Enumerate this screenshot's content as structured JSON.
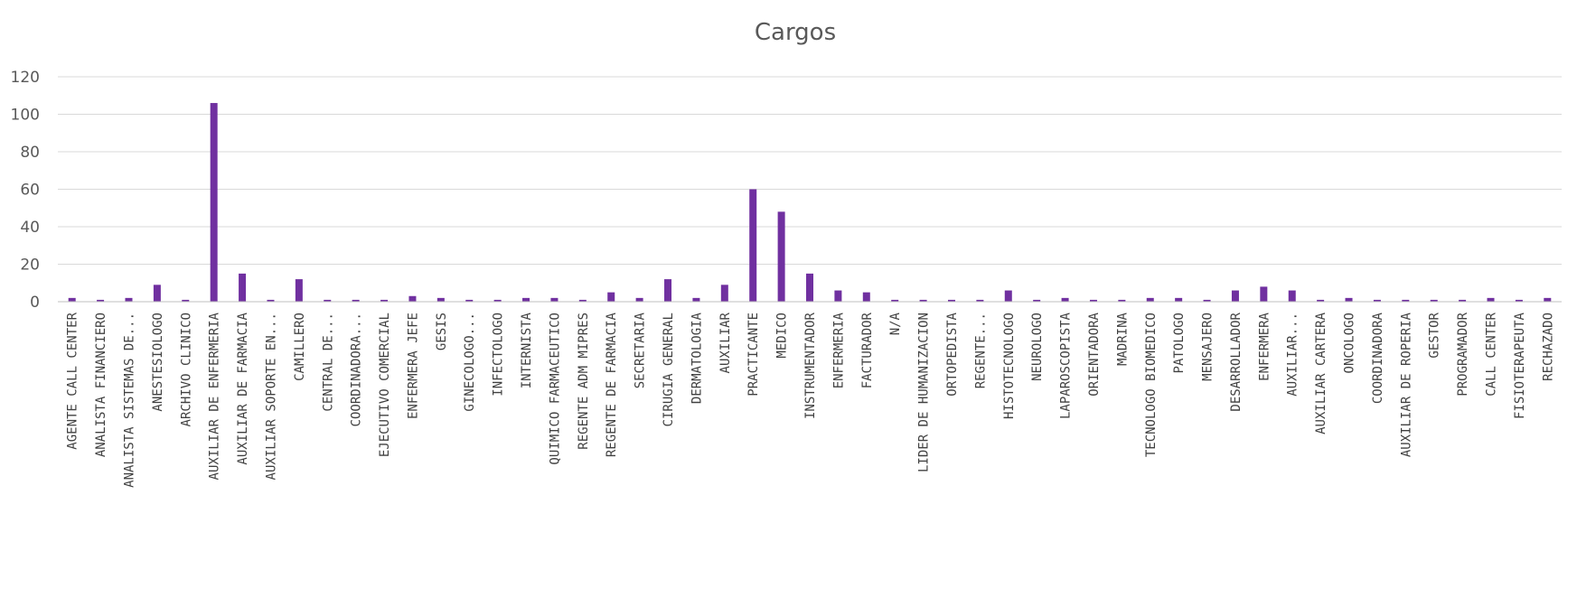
{
  "chart_data": {
    "type": "bar",
    "title": "Cargos",
    "xlabel": "",
    "ylabel": "",
    "ylim": [
      0,
      120
    ],
    "yticks": [
      "0",
      "20",
      "40",
      "60",
      "80",
      "100",
      "120"
    ],
    "grid": true,
    "legend": "none",
    "bar_color": "#7030a0",
    "categories": [
      "AGENTE CALL CENTER",
      "ANALISTA FINANCIERO",
      "ANALISTA SISTEMAS DE...",
      "ANESTESIOLOGO",
      "ARCHIVO CLINICO",
      "AUXILIAR DE ENFERMERIA",
      "AUXILIAR DE FARMACIA",
      "AUXILIAR SOPORTE EN...",
      "CAMILLERO",
      "CENTRAL DE...",
      "COORDINADORA...",
      "EJECUTIVO COMERCIAL",
      "ENFERMERA JEFE",
      "GESIS",
      "GINECOLOGO...",
      "INFECTOLOGO",
      "INTERNISTA",
      "QUIMICO FARMACEUTICO",
      "REGENTE ADM MIPRES",
      "REGENTE DE FARMACIA",
      "SECRETARIA",
      "CIRUGIA GENERAL",
      "DERMATOLOGIA",
      "AUXILIAR",
      "PRACTICANTE",
      "MEDICO",
      "INSTRUMENTADOR",
      "ENFERMERIA",
      "FACTURADOR",
      "N/A",
      "LIDER DE HUMANIZACION",
      "ORTOPEDISTA",
      "REGENTE...",
      "HISTOTECNOLOGO",
      "NEUROLOGO",
      "LAPAROSCOPISTA",
      "ORIENTADORA",
      "MADRINA",
      "TECNOLOGO BIOMEDICO",
      "PATOLOGO",
      "MENSAJERO",
      "DESARROLLADOR",
      "ENFERMERA",
      "AUXILIAR...",
      "AUXILIAR CARTERA",
      "ONCOLOGO",
      "COORDINADORA",
      "AUXILIAR DE ROPERIA",
      "GESTOR",
      "PROGRAMADOR",
      "CALL CENTER",
      "FISIOTERAPEUTA",
      "RECHAZADO"
    ],
    "values": [
      2,
      1,
      2,
      9,
      1,
      106,
      15,
      1,
      12,
      1,
      1,
      1,
      3,
      2,
      1,
      1,
      2,
      2,
      1,
      5,
      2,
      12,
      2,
      9,
      60,
      48,
      15,
      6,
      5,
      1,
      1,
      1,
      1,
      6,
      1,
      2,
      1,
      1,
      2,
      2,
      1,
      6,
      8,
      6,
      1,
      2,
      1,
      1,
      1,
      1,
      2,
      1,
      2
    ]
  }
}
